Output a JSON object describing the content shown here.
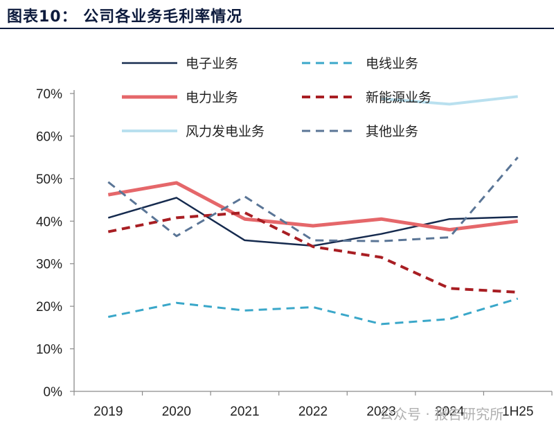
{
  "header": {
    "title": "图表10：  公司各业务毛利率情况"
  },
  "watermark": {
    "text": "公众号 · 报告研究所"
  },
  "chart_data": {
    "type": "line",
    "title": "公司各业务毛利率情况",
    "categories": [
      "2019",
      "2020",
      "2021",
      "2022",
      "2023",
      "2024",
      "1H25"
    ],
    "yticks": [
      "0%",
      "10%",
      "20%",
      "30%",
      "40%",
      "50%",
      "60%",
      "70%"
    ],
    "ylim": [
      0,
      70
    ],
    "grid": false,
    "legend_position": "top",
    "series": [
      {
        "name": "电子业务",
        "color": "#152a4e",
        "dash": "solid",
        "values": [
          40.8,
          45.5,
          35.5,
          34.2,
          37.0,
          40.5,
          41.0
        ]
      },
      {
        "name": "电线业务",
        "color": "#3aa7c9",
        "dash": "dash",
        "values": [
          17.5,
          20.8,
          19.0,
          19.8,
          15.8,
          17.0,
          21.8
        ]
      },
      {
        "name": "电力业务",
        "color": "#e5676a",
        "dash": "solid",
        "values": [
          46.2,
          49.0,
          40.5,
          38.9,
          40.5,
          38.0,
          40.0
        ]
      },
      {
        "name": "新能源业务",
        "color": "#a81e23",
        "dash": "dash",
        "values": [
          37.5,
          40.8,
          42.0,
          34.0,
          31.5,
          24.2,
          23.3
        ]
      },
      {
        "name": "风力发电业务",
        "color": "#b9e0ef",
        "dash": "solid",
        "values": [
          null,
          null,
          null,
          null,
          68.8,
          67.5,
          69.3
        ]
      },
      {
        "name": "其他业务",
        "color": "#5a7596",
        "dash": "dash",
        "values": [
          49.2,
          36.5,
          45.8,
          35.5,
          35.3,
          36.2,
          55.0
        ]
      }
    ]
  }
}
